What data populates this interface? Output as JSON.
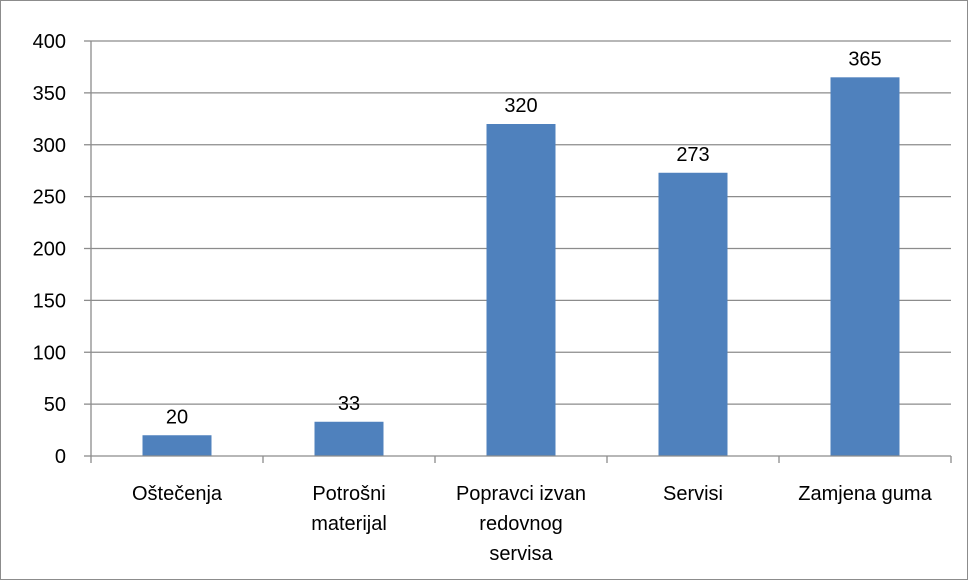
{
  "chart_data": {
    "type": "bar",
    "categories": [
      [
        "Oštečenja"
      ],
      [
        "Potrošni",
        "materijal"
      ],
      [
        "Popravci izvan",
        "redovnog",
        "servisa"
      ],
      [
        "Servisi"
      ],
      [
        "Zamjena guma"
      ]
    ],
    "values": [
      20,
      33,
      320,
      273,
      365
    ],
    "data_labels": [
      "20",
      "33",
      "320",
      "273",
      "365"
    ],
    "ylim": [
      0,
      400
    ],
    "yticks": [
      0,
      50,
      100,
      150,
      200,
      250,
      300,
      350,
      400
    ],
    "ytick_labels": [
      "0",
      "50",
      "100",
      "150",
      "200",
      "250",
      "300",
      "350",
      "400"
    ],
    "grid": true,
    "legend": "none",
    "bar_color": "#4f81bd",
    "grid_color": "#8c8c8c",
    "axis_color": "#8c8c8c"
  }
}
